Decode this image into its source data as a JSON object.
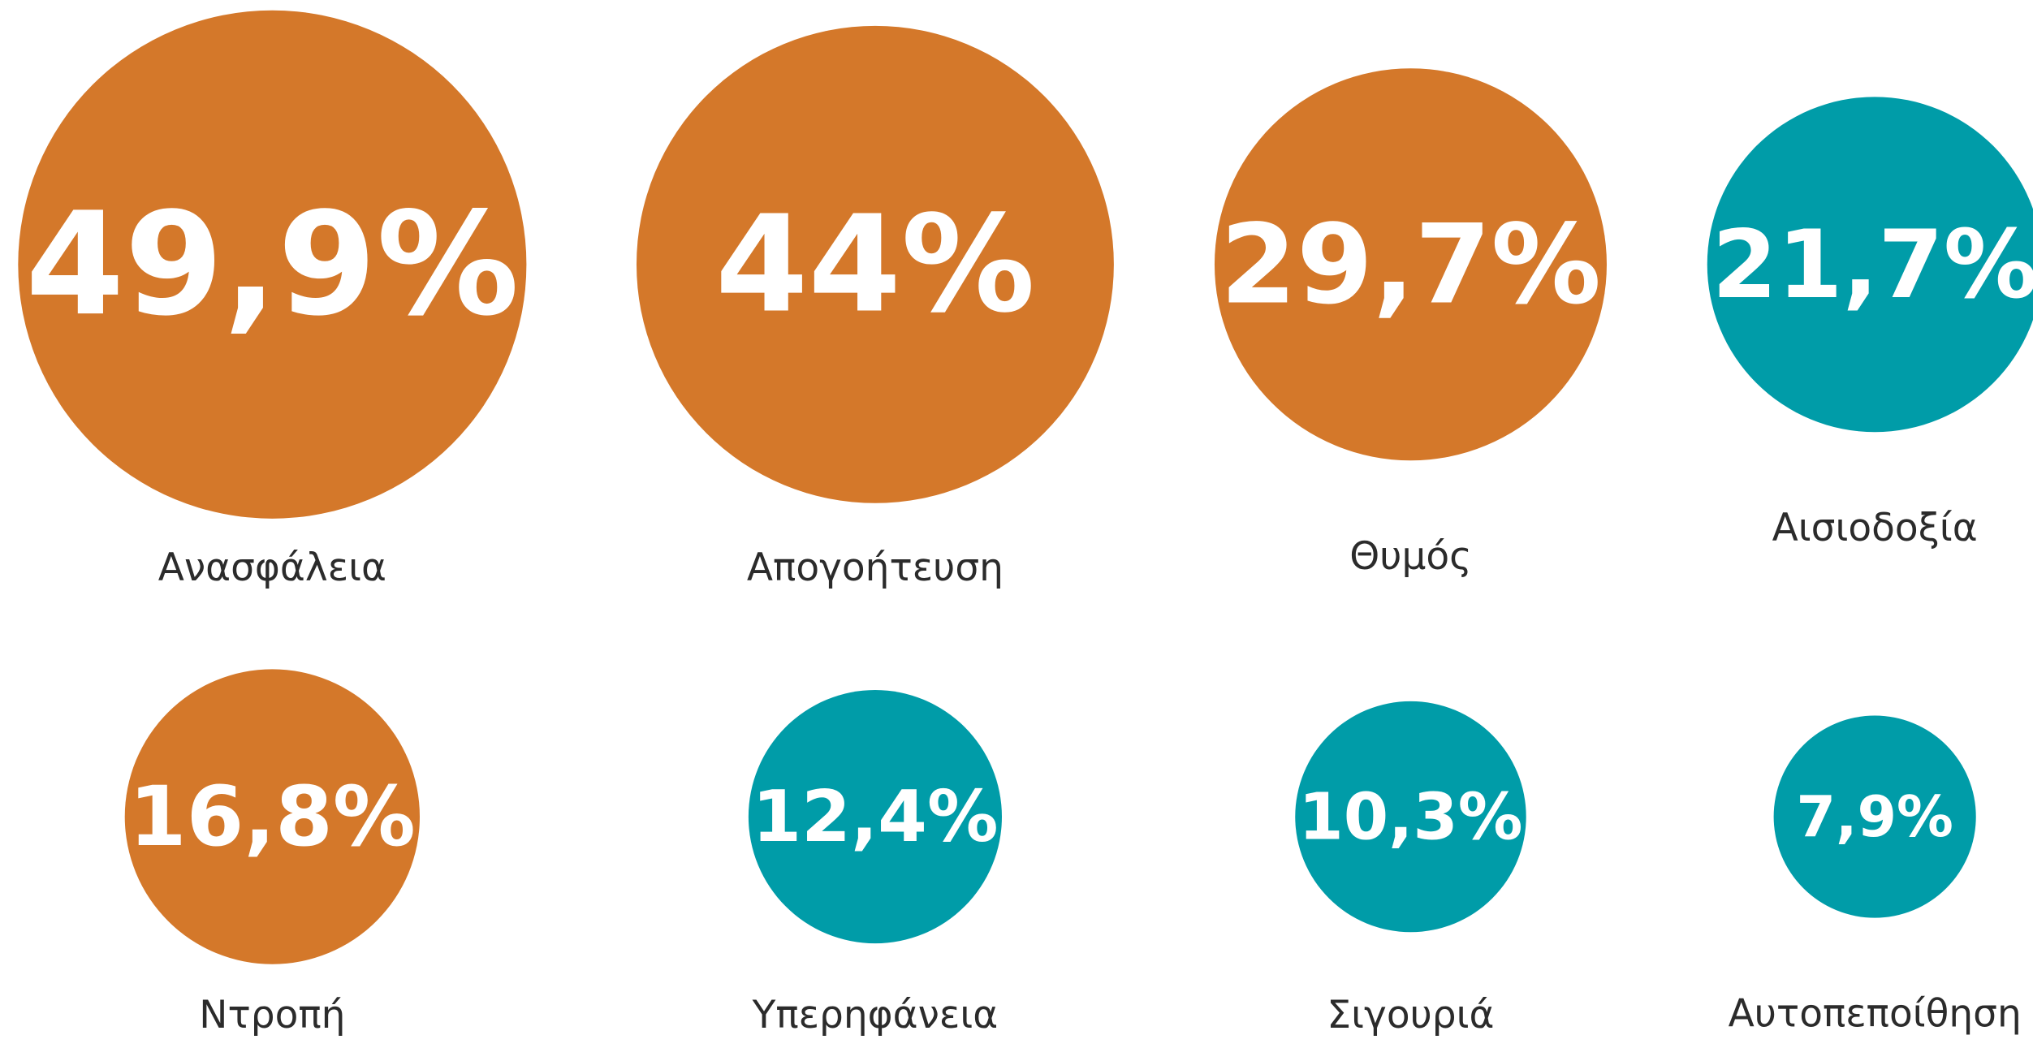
{
  "chart_data": {
    "type": "bubble",
    "categories": [
      "Ανασφάλεια",
      "Απογοήτευση",
      "Θυμός",
      "Αισιοδοξία",
      "Ντροπή",
      "Υπερηφάνεια",
      "Σιγουριά",
      "Αυτοπεποίθηση"
    ],
    "values": [
      49.9,
      44,
      29.7,
      21.7,
      16.8,
      12.4,
      10.3,
      7.9
    ],
    "value_labels": [
      "49,9%",
      "44%",
      "29,7%",
      "21,7%",
      "16,8%",
      "12,4%",
      "10,3%",
      "7,9%"
    ],
    "colors": [
      "#d4782a",
      "#d4782a",
      "#d4782a",
      "#009ca8",
      "#d4782a",
      "#009ca8",
      "#009ca8",
      "#009ca8"
    ]
  }
}
